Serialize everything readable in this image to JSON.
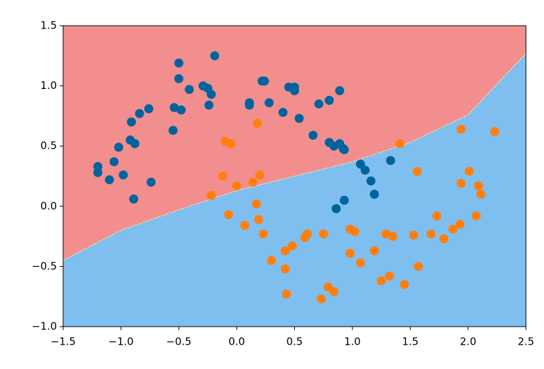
{
  "chart_data": {
    "type": "scatter",
    "xlim": [
      -1.5,
      2.5
    ],
    "ylim": [
      -1.0,
      1.5
    ],
    "xticks": [
      {
        "value": -1.5,
        "label": "−1.5"
      },
      {
        "value": -1.0,
        "label": "−1.0"
      },
      {
        "value": -0.5,
        "label": "−0.5"
      },
      {
        "value": 0,
        "label": "0.0"
      },
      0.5,
      {
        "value": 1,
        "label": "1.0"
      },
      1.5,
      {
        "value": 2,
        "label": "2.0"
      },
      2.5
    ],
    "yticks": [
      {
        "value": -1.0,
        "label": "−1.0"
      },
      {
        "value": -0.5,
        "label": "−0.5"
      },
      {
        "value": 0,
        "label": "0.0"
      },
      0.5,
      {
        "value": 1,
        "label": "1.0"
      },
      1.5
    ],
    "region_colors": {
      "above": "#f28e8e",
      "below": "#7ebff0"
    },
    "decision_boundary": {
      "color": "#f5e9a0",
      "x": [
        -1.5,
        -1.0,
        -0.5,
        0,
        0.5,
        1.0,
        1.5,
        2.0,
        2.5
      ],
      "y": [
        -0.45,
        -0.2,
        -0.03,
        0.13,
        0.25,
        0.37,
        0.53,
        0.76,
        1.27
      ]
    },
    "series": [
      {
        "color": "#00639e",
        "x": [
          -1.2,
          -1.2,
          -1.1,
          -1.06,
          -1.02,
          -0.98,
          -0.91,
          -0.92,
          -0.88,
          -0.84,
          -0.76,
          -0.74,
          -0.89,
          -0.55,
          -0.54,
          -0.5,
          -0.5,
          -0.48,
          -0.41,
          -0.29,
          -0.25,
          -0.22,
          -0.24,
          -0.19,
          0.11,
          0.11,
          0.22,
          0.24,
          0.28,
          0.4,
          0.45,
          0.5,
          0.5,
          0.54,
          0.66,
          0.71,
          0.8,
          0.8,
          0.84,
          0.89,
          0.89,
          0.92,
          0.93,
          0.86,
          0.93,
          1.07,
          1.11,
          1.16,
          1.19,
          1.33
        ],
        "values": [
          0.33,
          0.28,
          0.22,
          0.37,
          0.49,
          0.26,
          0.7,
          0.55,
          0.52,
          0.77,
          0.81,
          0.2,
          0.06,
          0.63,
          0.82,
          1.19,
          1.06,
          0.8,
          0.97,
          1.0,
          0.98,
          0.93,
          0.84,
          1.25,
          0.86,
          0.84,
          1.04,
          1.04,
          0.86,
          0.78,
          0.99,
          0.99,
          0.96,
          0.73,
          0.59,
          0.85,
          0.88,
          0.53,
          0.5,
          0.96,
          0.52,
          0.48,
          0.47,
          -0.02,
          0.05,
          0.35,
          0.3,
          0.21,
          0.1,
          0.38
        ]
      },
      {
        "color": "#ff7f0e",
        "x": [
          0.18,
          -0.1,
          -0.05,
          -0.12,
          0.0,
          0.14,
          0.2,
          -0.22,
          -0.07,
          0.07,
          0.17,
          0.19,
          0.23,
          0.3,
          0.42,
          0.48,
          0.42,
          0.43,
          0.59,
          0.61,
          0.75,
          0.73,
          0.79,
          0.84,
          0.98,
          1.02,
          0.98,
          1.07,
          1.19,
          1.25,
          1.32,
          1.29,
          1.35,
          1.45,
          1.53,
          1.57,
          1.56,
          1.41,
          1.68,
          1.73,
          1.79,
          1.87,
          1.93,
          1.94,
          2.01,
          2.07,
          2.09,
          2.11,
          1.94,
          2.23
        ],
        "values": [
          0.69,
          0.54,
          0.52,
          0.25,
          0.17,
          0.2,
          0.26,
          0.09,
          -0.07,
          -0.16,
          0.02,
          -0.11,
          -0.23,
          -0.45,
          -0.37,
          -0.33,
          -0.52,
          -0.73,
          -0.26,
          -0.23,
          -0.23,
          -0.77,
          -0.67,
          -0.71,
          -0.19,
          -0.21,
          -0.39,
          -0.47,
          -0.37,
          -0.62,
          -0.58,
          -0.23,
          -0.25,
          -0.65,
          -0.24,
          -0.5,
          0.29,
          0.52,
          -0.23,
          -0.08,
          -0.27,
          -0.19,
          -0.15,
          0.19,
          0.29,
          -0.08,
          0.17,
          0.1,
          0.64,
          0.62
        ]
      }
    ]
  }
}
